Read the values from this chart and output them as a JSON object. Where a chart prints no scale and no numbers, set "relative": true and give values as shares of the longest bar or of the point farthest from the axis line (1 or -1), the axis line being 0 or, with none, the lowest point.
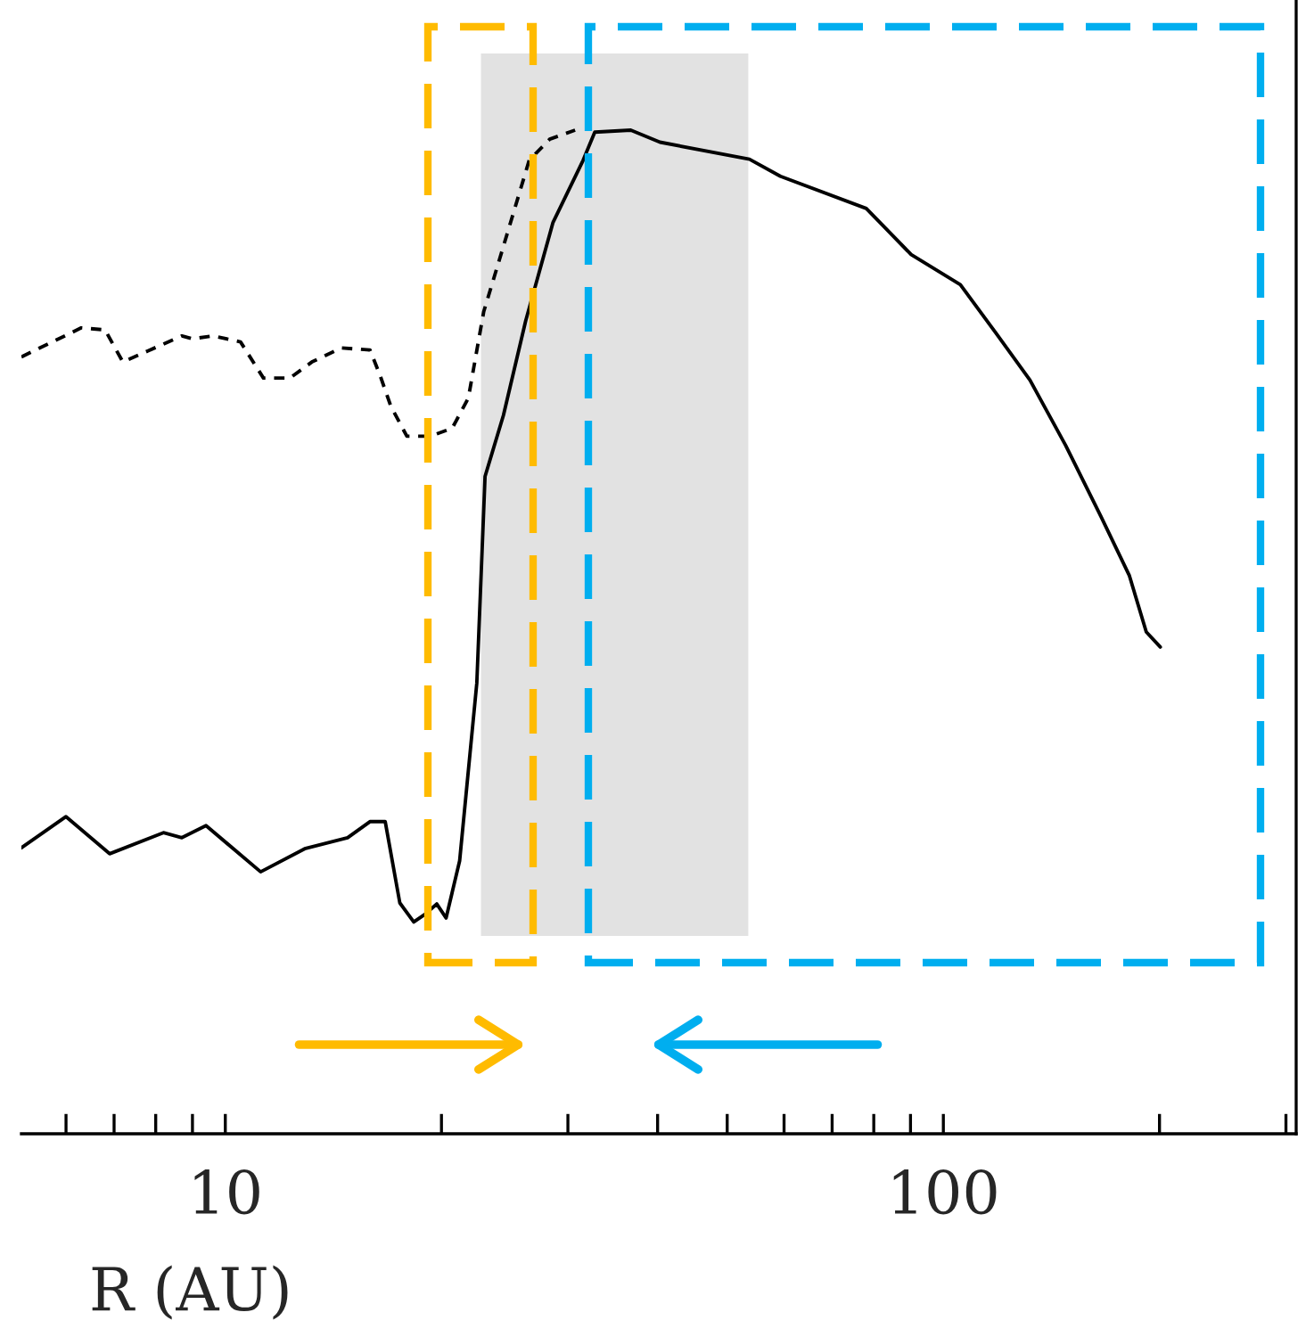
{
  "chart_data": {
    "type": "line",
    "xlabel": "R (AU)",
    "relative": true,
    "log": "x",
    "xlim": [
      5.2,
      310
    ],
    "xticks": [
      {
        "value": 6,
        "label": null
      },
      {
        "value": 7,
        "label": null
      },
      {
        "value": 8,
        "label": null
      },
      {
        "value": 9,
        "label": null
      },
      10,
      {
        "value": 20,
        "label": null
      },
      {
        "value": 30,
        "label": null
      },
      {
        "value": 40,
        "label": null
      },
      {
        "value": 50,
        "label": null
      },
      {
        "value": 60,
        "label": null
      },
      {
        "value": 70,
        "label": null
      },
      {
        "value": 80,
        "label": null
      },
      {
        "value": 90,
        "label": null
      },
      100,
      {
        "value": 200,
        "label": null
      },
      {
        "value": 300,
        "label": null
      }
    ],
    "grid": false,
    "legend": false,
    "marker": "none",
    "series": [
      {
        "color": "#000000",
        "line_style": "dashed",
        "x": [
          5.2,
          6.3,
          6.8,
          7.2,
          7.8,
          8.7,
          9.0,
          9.6,
          10.5,
          11.3,
          12.3,
          13.2,
          14.5,
          15.9,
          16.4,
          17.0,
          17.9,
          19.3,
          20.7,
          21.8,
          22.9,
          23.9,
          26.5,
          28.3,
          30.7
        ],
        "values": [
          0.774,
          0.803,
          0.801,
          0.769,
          0.78,
          0.795,
          0.792,
          0.795,
          0.789,
          0.753,
          0.753,
          0.769,
          0.783,
          0.781,
          0.757,
          0.725,
          0.695,
          0.695,
          0.703,
          0.733,
          0.819,
          0.863,
          0.97,
          0.991,
          1.0
        ]
      },
      {
        "color": "#000000",
        "line_style": "solid",
        "x": [
          5.2,
          6.0,
          6.9,
          8.2,
          8.7,
          9.4,
          11.2,
          12.9,
          14.8,
          15.9,
          16.7,
          17.5,
          18.3,
          19.0,
          19.7,
          20.3,
          21.2,
          22.4,
          23.0,
          24.4,
          26.2,
          28.6,
          31.5,
          32.7,
          36.7,
          40.3,
          53.7,
          59.3,
          78.1,
          90.2,
          105.6,
          118.3,
          132.0,
          148.0,
          165.8,
          181.6,
          191.7,
          200.5
        ],
        "values": [
          0.285,
          0.316,
          0.279,
          0.3,
          0.295,
          0.307,
          0.261,
          0.284,
          0.295,
          0.311,
          0.311,
          0.23,
          0.211,
          0.219,
          0.229,
          0.215,
          0.272,
          0.449,
          0.655,
          0.716,
          0.81,
          0.908,
          0.97,
          0.998,
          1.0,
          0.988,
          0.971,
          0.954,
          0.922,
          0.876,
          0.846,
          0.798,
          0.751,
          0.686,
          0.615,
          0.556,
          0.5,
          0.485
        ]
      }
    ],
    "bands": [
      {
        "axis": "x",
        "from": 22.7,
        "to": 53.5,
        "color": "#dddddd"
      }
    ]
  }
}
